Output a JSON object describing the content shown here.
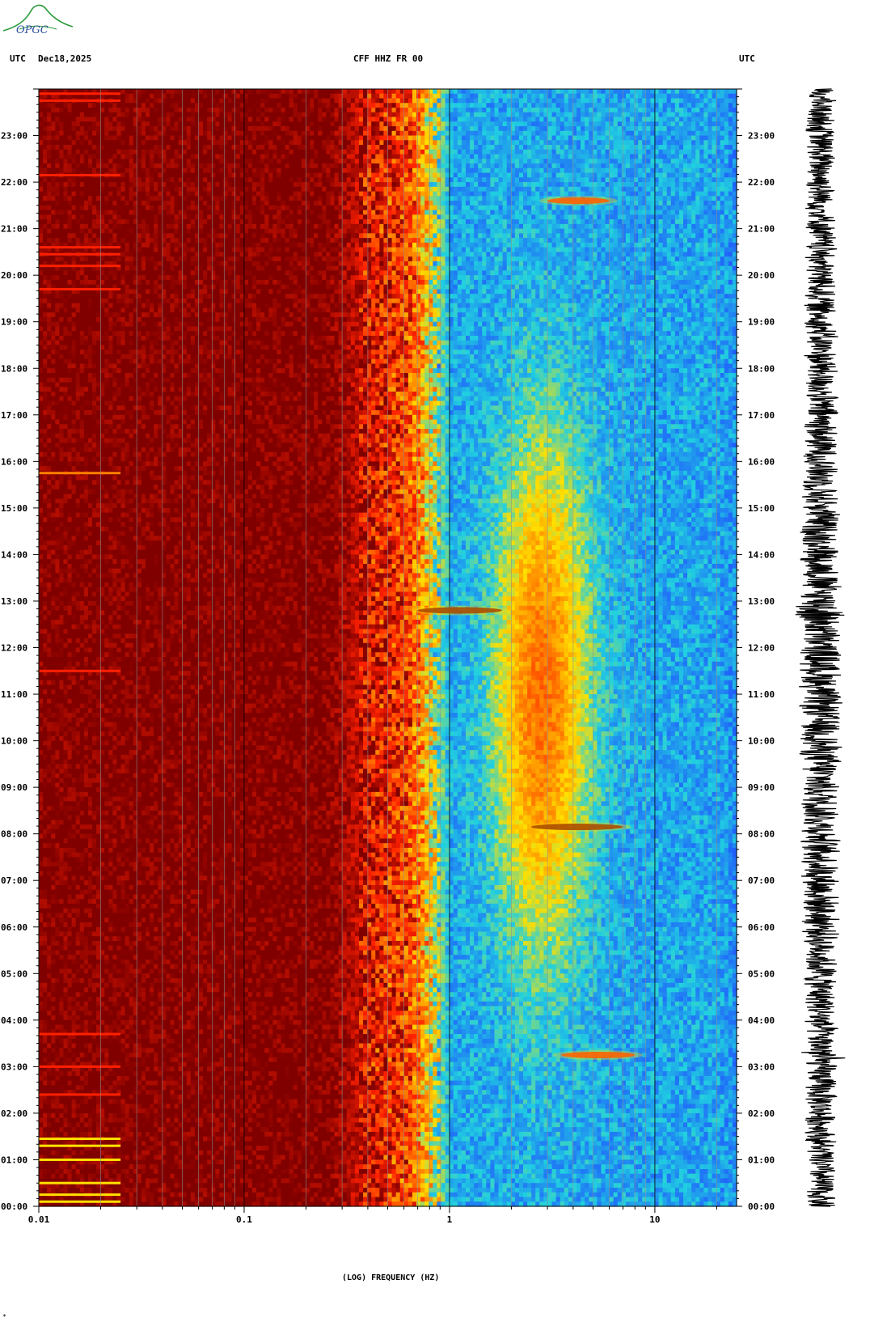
{
  "header": {
    "utc_left": "UTC",
    "date": "Dec18,2025",
    "station": "CFF HHZ FR 00",
    "utc_right": "UTC"
  },
  "logo": {
    "text": "OPGC"
  },
  "colors": {
    "background": "#ffffff",
    "saturated": "#800000",
    "red": "#ff2000",
    "orange": "#ff8000",
    "yellow": "#ffe000",
    "cyan": "#20d0e0",
    "blue": "#2050ff",
    "deep_blue": "#1030d0",
    "trace": "#000000"
  },
  "chart_data": {
    "type": "heatmap",
    "title": "CFF HHZ FR 00",
    "xlabel": "(LOG) FREQUENCY (HZ)",
    "x_scale": "log",
    "xlim": [
      0.01,
      25
    ],
    "x_ticks": [
      "0.01",
      "0.1",
      "1",
      "10"
    ],
    "x_tick_values": [
      0.01,
      0.1,
      1,
      10
    ],
    "ylabel": "UTC",
    "ylim_hours": [
      0,
      24
    ],
    "y_ticks": [
      "00:00",
      "01:00",
      "02:00",
      "03:00",
      "04:00",
      "05:00",
      "06:00",
      "07:00",
      "08:00",
      "09:00",
      "10:00",
      "11:00",
      "12:00",
      "13:00",
      "14:00",
      "15:00",
      "16:00",
      "17:00",
      "18:00",
      "19:00",
      "20:00",
      "21:00",
      "22:00",
      "23:00"
    ],
    "y_tick_values": [
      0,
      1,
      2,
      3,
      4,
      5,
      6,
      7,
      8,
      9,
      10,
      11,
      12,
      13,
      14,
      15,
      16,
      17,
      18,
      19,
      20,
      21,
      22,
      23
    ],
    "colormap": [
      "#1030d0",
      "#2050ff",
      "#20d0e0",
      "#ffe000",
      "#ff8000",
      "#ff2000",
      "#800000"
    ],
    "events": [
      {
        "time_utc": 12.8,
        "freq_range_hz": [
          0.7,
          1.8
        ],
        "level": "saturated"
      },
      {
        "time_utc": 8.15,
        "freq_range_hz": [
          2.5,
          7
        ],
        "level": "saturated"
      },
      {
        "time_utc": 3.25,
        "freq_range_hz": [
          3.5,
          8
        ],
        "level": "high"
      },
      {
        "time_utc": 21.6,
        "freq_range_hz": [
          3,
          6
        ],
        "level": "high"
      }
    ],
    "seismogram": {
      "label": "waveform trace",
      "time_range_hours": [
        0,
        24
      ]
    }
  }
}
